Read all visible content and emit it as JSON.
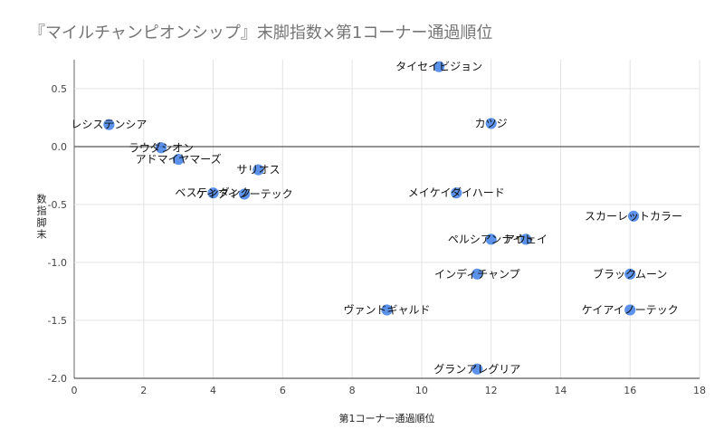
{
  "chart_data": {
    "type": "scatter",
    "title": "『マイルチャンピオンシップ』末脚指数×第1コーナー通過順位",
    "xlabel": "第1コーナー通過順位",
    "ylabel": "数指脚末",
    "xlim": [
      0,
      18
    ],
    "ylim": [
      -2.0,
      0.75
    ],
    "x_ticks": [
      "0",
      "2",
      "4",
      "6",
      "8",
      "10",
      "12",
      "14",
      "16",
      "18"
    ],
    "y_ticks": [
      "-2.0",
      "-1.5",
      "-1.0",
      "-0.5",
      "0.0",
      "0.5"
    ],
    "grid": true,
    "point_color": "#4a86e8",
    "points": [
      {
        "label": "タイセイビジョン",
        "x": 10.5,
        "y": 0.69
      },
      {
        "label": "カツジ",
        "x": 12.0,
        "y": 0.2
      },
      {
        "label": "レシステンシア",
        "x": 1.0,
        "y": 0.19
      },
      {
        "label": "ラウダシオン",
        "x": 2.5,
        "y": -0.01
      },
      {
        "label": "アドマイヤマーズ",
        "x": 3.0,
        "y": -0.11
      },
      {
        "label": "サリオス",
        "x": 5.3,
        "y": -0.2
      },
      {
        "label": "ベステンダンク",
        "x": 4.0,
        "y": -0.4
      },
      {
        "label": "ケイアイノーテック",
        "x": 4.9,
        "y": -0.41
      },
      {
        "label": "メイケイダイハード",
        "x": 11.0,
        "y": -0.4
      },
      {
        "label": "スカーレットカラー",
        "x": 16.1,
        "y": -0.6
      },
      {
        "label": "ペルシアンナイト",
        "x": 12.0,
        "y": -0.8
      },
      {
        "label": "アウェイ",
        "x": 13.0,
        "y": -0.8
      },
      {
        "label": "インディチャンプ",
        "x": 11.6,
        "y": -1.1
      },
      {
        "label": "ブラックムーン",
        "x": 16.0,
        "y": -1.1
      },
      {
        "label": "ヴァンドギャルド",
        "x": 9.0,
        "y": -1.41
      },
      {
        "label": "ケイアイノーテック",
        "x": 16.0,
        "y": -1.41
      },
      {
        "label": "グランアレグリア",
        "x": 11.6,
        "y": -1.92
      }
    ]
  }
}
